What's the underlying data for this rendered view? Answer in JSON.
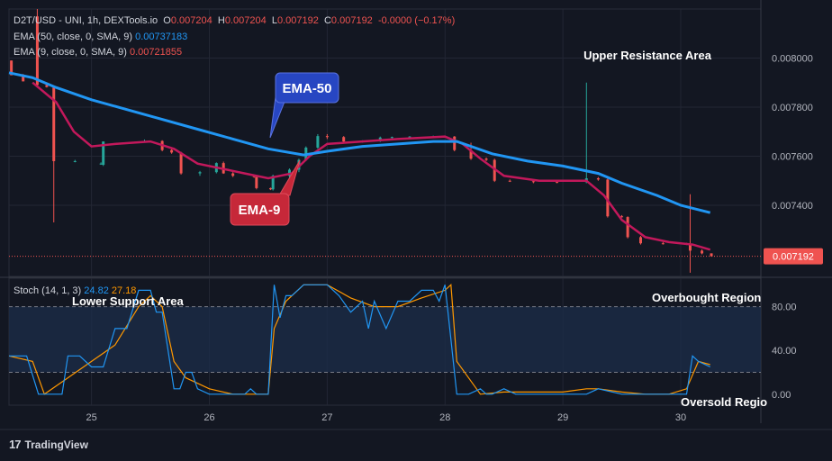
{
  "header": {
    "symbol": "D2T/USD - UNI, 1h, DEXTools.io",
    "open_label": "O",
    "open": "0.007204",
    "high_label": "H",
    "high": "0.007204",
    "low_label": "L",
    "low": "0.007192",
    "close_label": "C",
    "close": "0.007192",
    "change": "-0.0000 (−0.17%)",
    "ema50_label": "EMA (50, close, 0, SMA, 9)",
    "ema50_value": "0.00737183",
    "ema9_label": "EMA (9, close, 0, SMA, 9)",
    "ema9_value": "0.00721855",
    "stoch_label": "Stoch (14, 1, 3)",
    "stoch_k": "24.82",
    "stoch_d": "27.18"
  },
  "annotations": {
    "ema50": "EMA-50",
    "ema9": "EMA-9",
    "upper_resistance": "Upper Resistance Area",
    "lower_support": "Lower Support Area",
    "overbought": "Overbought Region",
    "oversold": "Oversold Regio"
  },
  "branding": {
    "logo_mark": "17",
    "name": "TradingView"
  },
  "colors": {
    "background": "#131722",
    "up": "#26a69a",
    "down": "#ef5350",
    "ema50": "#2196f3",
    "ema9": "#c2185b",
    "stoch_k": "#2196f3",
    "stoch_d": "#ff9800",
    "callout_blue": "#2746c2",
    "callout_red": "#c62839"
  },
  "chart_data": [
    {
      "type": "candlestick",
      "title": "D2T/USD - UNI, 1h, DEXTools.io",
      "x_ticks": [
        "25",
        "26",
        "27",
        "28",
        "29",
        "30"
      ],
      "x_range": [
        24.3,
        30.68
      ],
      "y_ticks": [
        "0.008000",
        "0.007800",
        "0.007600",
        "0.007400"
      ],
      "ylim": [
        0.00711,
        0.0082
      ],
      "last_price": "0.007192",
      "candles": [
        {
          "x": 24.32,
          "o": 0.00799,
          "h": 0.00799,
          "l": 0.00793,
          "c": 0.00793
        },
        {
          "x": 24.42,
          "o": 0.00793,
          "h": 0.007935,
          "l": 0.007905,
          "c": 0.007905
        },
        {
          "x": 24.54,
          "o": 0.00817,
          "h": 0.0082,
          "l": 0.00788,
          "c": 0.00789
        },
        {
          "x": 24.62,
          "o": 0.00789,
          "h": 0.007895,
          "l": 0.00788,
          "c": 0.007882
        },
        {
          "x": 24.68,
          "o": 0.00788,
          "h": 0.007885,
          "l": 0.00733,
          "c": 0.00758
        },
        {
          "x": 24.86,
          "o": 0.00758,
          "h": 0.007585,
          "l": 0.007575,
          "c": 0.00758
        },
        {
          "x": 25.08,
          "o": 0.00757,
          "h": 0.007575,
          "l": 0.007565,
          "c": 0.00757
        },
        {
          "x": 25.1,
          "o": 0.007565,
          "h": 0.00766,
          "l": 0.00756,
          "c": 0.00766
        },
        {
          "x": 25.45,
          "o": 0.00766,
          "h": 0.007668,
          "l": 0.007655,
          "c": 0.007662
        },
        {
          "x": 25.6,
          "o": 0.007662,
          "h": 0.007665,
          "l": 0.00762,
          "c": 0.007625
        },
        {
          "x": 25.68,
          "o": 0.007625,
          "h": 0.00763,
          "l": 0.00761,
          "c": 0.007615
        },
        {
          "x": 25.76,
          "o": 0.007615,
          "h": 0.007618,
          "l": 0.007525,
          "c": 0.00753
        },
        {
          "x": 25.92,
          "o": 0.00753,
          "h": 0.00754,
          "l": 0.00752,
          "c": 0.007535
        },
        {
          "x": 26.06,
          "o": 0.007535,
          "h": 0.007575,
          "l": 0.00753,
          "c": 0.007572
        },
        {
          "x": 26.12,
          "o": 0.007572,
          "h": 0.007578,
          "l": 0.007528,
          "c": 0.00753
        },
        {
          "x": 26.2,
          "o": 0.00753,
          "h": 0.007535,
          "l": 0.007515,
          "c": 0.00752
        },
        {
          "x": 26.38,
          "o": 0.00752,
          "h": 0.007525,
          "l": 0.007512,
          "c": 0.007515
        },
        {
          "x": 26.4,
          "o": 0.007515,
          "h": 0.00752,
          "l": 0.007465,
          "c": 0.00747
        },
        {
          "x": 26.52,
          "o": 0.00747,
          "h": 0.007472,
          "l": 0.007462,
          "c": 0.007465
        },
        {
          "x": 26.54,
          "o": 0.007465,
          "h": 0.007525,
          "l": 0.00746,
          "c": 0.00752
        },
        {
          "x": 26.68,
          "o": 0.00752,
          "h": 0.00755,
          "l": 0.0075,
          "c": 0.007545
        },
        {
          "x": 26.76,
          "o": 0.007545,
          "h": 0.00759,
          "l": 0.007535,
          "c": 0.007585
        },
        {
          "x": 26.82,
          "o": 0.007585,
          "h": 0.00764,
          "l": 0.00758,
          "c": 0.007635
        },
        {
          "x": 26.92,
          "o": 0.007635,
          "h": 0.00769,
          "l": 0.00763,
          "c": 0.007682
        },
        {
          "x": 27.0,
          "o": 0.007682,
          "h": 0.00769,
          "l": 0.00767,
          "c": 0.007678
        },
        {
          "x": 27.14,
          "o": 0.007678,
          "h": 0.007682,
          "l": 0.007655,
          "c": 0.00766
        },
        {
          "x": 27.3,
          "o": 0.00766,
          "h": 0.007665,
          "l": 0.007655,
          "c": 0.007662
        },
        {
          "x": 27.45,
          "o": 0.007662,
          "h": 0.00768,
          "l": 0.007658,
          "c": 0.007676
        },
        {
          "x": 27.55,
          "o": 0.007676,
          "h": 0.00768,
          "l": 0.007672,
          "c": 0.007678
        },
        {
          "x": 27.7,
          "o": 0.007678,
          "h": 0.007682,
          "l": 0.007674,
          "c": 0.00768
        },
        {
          "x": 27.9,
          "o": 0.00768,
          "h": 0.007684,
          "l": 0.007676,
          "c": 0.00768
        },
        {
          "x": 28.08,
          "o": 0.00768,
          "h": 0.007682,
          "l": 0.00762,
          "c": 0.007625
        },
        {
          "x": 28.22,
          "o": 0.007625,
          "h": 0.007655,
          "l": 0.007585,
          "c": 0.00759
        },
        {
          "x": 28.35,
          "o": 0.00759,
          "h": 0.007595,
          "l": 0.00758,
          "c": 0.007585
        },
        {
          "x": 28.42,
          "o": 0.007585,
          "h": 0.00759,
          "l": 0.007495,
          "c": 0.0075
        },
        {
          "x": 28.55,
          "o": 0.0075,
          "h": 0.007505,
          "l": 0.007495,
          "c": 0.007498
        },
        {
          "x": 28.75,
          "o": 0.007498,
          "h": 0.0075,
          "l": 0.00749,
          "c": 0.007495
        },
        {
          "x": 28.95,
          "o": 0.007495,
          "h": 0.007498,
          "l": 0.00749,
          "c": 0.007494
        },
        {
          "x": 29.2,
          "o": 0.007494,
          "h": 0.0079,
          "l": 0.00749,
          "c": 0.00751
        },
        {
          "x": 29.3,
          "o": 0.00751,
          "h": 0.007515,
          "l": 0.0075,
          "c": 0.007505
        },
        {
          "x": 29.38,
          "o": 0.007505,
          "h": 0.00751,
          "l": 0.00735,
          "c": 0.007355
        },
        {
          "x": 29.5,
          "o": 0.007355,
          "h": 0.00736,
          "l": 0.00735,
          "c": 0.007352
        },
        {
          "x": 29.55,
          "o": 0.007352,
          "h": 0.007355,
          "l": 0.007265,
          "c": 0.00727
        },
        {
          "x": 29.66,
          "o": 0.00727,
          "h": 0.007275,
          "l": 0.00724,
          "c": 0.007245
        },
        {
          "x": 29.85,
          "o": 0.007245,
          "h": 0.00725,
          "l": 0.00724,
          "c": 0.007244
        },
        {
          "x": 30.05,
          "o": 0.007244,
          "h": 0.007247,
          "l": 0.007238,
          "c": 0.00724
        },
        {
          "x": 30.08,
          "o": 0.00724,
          "h": 0.007445,
          "l": 0.007125,
          "c": 0.007215
        },
        {
          "x": 30.18,
          "o": 0.007215,
          "h": 0.00722,
          "l": 0.0072,
          "c": 0.007204
        },
        {
          "x": 30.26,
          "o": 0.007204,
          "h": 0.007204,
          "l": 0.007192,
          "c": 0.007192
        }
      ],
      "ema50": {
        "name": "EMA (50, close, 0, SMA, 9)",
        "x": [
          24.3,
          24.5,
          24.7,
          25.0,
          25.3,
          25.6,
          25.9,
          26.2,
          26.5,
          26.8,
          27.0,
          27.3,
          27.6,
          27.9,
          28.1,
          28.4,
          28.7,
          29.0,
          29.3,
          29.5,
          29.8,
          30.0,
          30.25
        ],
        "values": [
          0.00794,
          0.00792,
          0.00788,
          0.00783,
          0.00779,
          0.00775,
          0.00771,
          0.00767,
          0.00763,
          0.007605,
          0.00762,
          0.00764,
          0.00765,
          0.00766,
          0.00766,
          0.00761,
          0.00758,
          0.00756,
          0.00753,
          0.00749,
          0.00744,
          0.0074,
          0.00737
        ]
      },
      "ema9": {
        "name": "EMA (9, close, 0, SMA, 9)",
        "x": [
          24.5,
          24.7,
          24.85,
          25.0,
          25.2,
          25.5,
          25.7,
          25.9,
          26.1,
          26.3,
          26.5,
          26.7,
          26.85,
          27.0,
          27.3,
          27.6,
          28.0,
          28.15,
          28.3,
          28.5,
          28.8,
          29.2,
          29.35,
          29.5,
          29.7,
          29.9,
          30.1,
          30.25
        ],
        "values": [
          0.0079,
          0.00782,
          0.0077,
          0.00764,
          0.00765,
          0.00766,
          0.00763,
          0.00757,
          0.00755,
          0.00753,
          0.00751,
          0.00753,
          0.0076,
          0.00765,
          0.00766,
          0.00767,
          0.00768,
          0.00765,
          0.00759,
          0.00752,
          0.0075,
          0.0075,
          0.00744,
          0.00734,
          0.00727,
          0.00725,
          0.00724,
          0.007219
        ]
      }
    },
    {
      "type": "line",
      "title": "Stoch (14, 1, 3)",
      "y_ticks": [
        "80.00",
        "40.00",
        "0.00"
      ],
      "ylim": [
        -10,
        106
      ],
      "bands": [
        80,
        20
      ],
      "series": [
        {
          "name": "%K",
          "x": [
            24.3,
            24.45,
            24.55,
            24.6,
            24.75,
            24.8,
            24.9,
            25.0,
            25.1,
            25.2,
            25.3,
            25.4,
            25.5,
            25.55,
            25.6,
            25.7,
            25.75,
            25.8,
            25.85,
            25.9,
            26.0,
            26.1,
            26.2,
            26.3,
            26.35,
            26.4,
            26.45,
            26.5,
            26.55,
            26.6,
            26.65,
            26.7,
            26.8,
            26.9,
            27.0,
            27.1,
            27.2,
            27.3,
            27.35,
            27.4,
            27.5,
            27.6,
            27.7,
            27.8,
            27.9,
            27.95,
            28.0,
            28.05,
            28.1,
            28.2,
            28.3,
            28.35,
            28.4,
            28.5,
            28.6,
            28.8,
            29.0,
            29.2,
            29.3,
            29.5,
            29.7,
            29.9,
            30.0,
            30.05,
            30.1,
            30.15,
            30.25
          ],
          "values": [
            35,
            35,
            0,
            0,
            0,
            35,
            35,
            25,
            25,
            60,
            60,
            95,
            95,
            75,
            75,
            5,
            5,
            20,
            20,
            5,
            0,
            0,
            0,
            0,
            5,
            0,
            0,
            0,
            100,
            70,
            90,
            90,
            100,
            100,
            100,
            90,
            75,
            85,
            60,
            85,
            60,
            85,
            85,
            95,
            95,
            85,
            100,
            50,
            0,
            0,
            5,
            0,
            0,
            5,
            0,
            0,
            0,
            0,
            5,
            0,
            0,
            0,
            0,
            0,
            35,
            30,
            25
          ]
        },
        {
          "name": "%D",
          "x": [
            24.3,
            24.5,
            24.6,
            24.8,
            25.0,
            25.2,
            25.4,
            25.5,
            25.6,
            25.7,
            25.8,
            25.9,
            26.0,
            26.2,
            26.4,
            26.5,
            26.55,
            26.65,
            26.8,
            27.0,
            27.2,
            27.4,
            27.6,
            27.8,
            28.0,
            28.05,
            28.1,
            28.3,
            28.5,
            28.8,
            29.0,
            29.2,
            29.3,
            29.5,
            29.7,
            29.9,
            30.05,
            30.15,
            30.25
          ],
          "values": [
            35,
            30,
            0,
            15,
            30,
            45,
            80,
            90,
            80,
            30,
            15,
            10,
            5,
            0,
            0,
            0,
            60,
            85,
            100,
            100,
            88,
            80,
            80,
            88,
            95,
            100,
            30,
            0,
            2,
            2,
            2,
            5,
            5,
            2,
            0,
            0,
            5,
            30,
            27
          ]
        }
      ]
    }
  ]
}
